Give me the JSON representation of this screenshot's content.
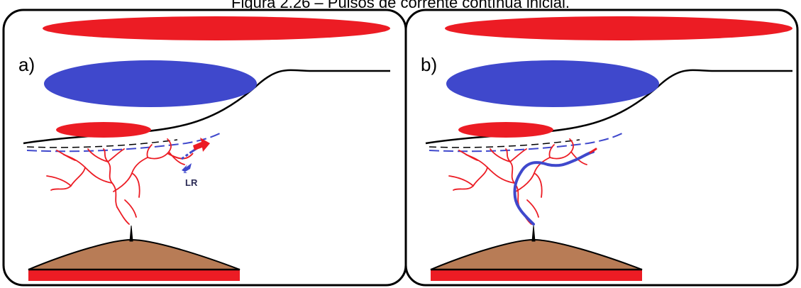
{
  "caption": "Figura 2.26 – Pulsos de corrente contínua inicial.",
  "panels": [
    {
      "label": "a)"
    },
    {
      "label": "b)"
    }
  ],
  "annotation": "LR",
  "colors": {
    "positive_charge": "#ec1c24",
    "negative_charge": "#3f48cc",
    "ground": "#b87c56",
    "outline": "#000000"
  }
}
